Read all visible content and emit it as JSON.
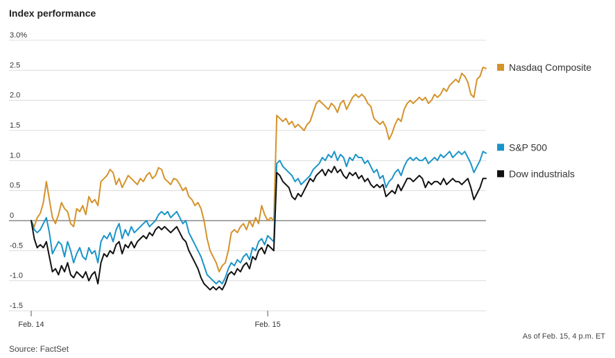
{
  "chart_data": {
    "type": "line",
    "title": "Index performance",
    "note": "As of Feb. 15, 4 p.m. ET",
    "source": "Source: FactSet",
    "ylim": [
      -1.5,
      3.0
    ],
    "y_ticks": [
      {
        "value": 3.0,
        "label": "3.0%"
      },
      {
        "value": 2.5,
        "label": "2.5"
      },
      {
        "value": 2.0,
        "label": "2.0"
      },
      {
        "value": 1.5,
        "label": "1.5"
      },
      {
        "value": 1.0,
        "label": "1.0"
      },
      {
        "value": 0.5,
        "label": "0.5"
      },
      {
        "value": 0,
        "label": "0"
      },
      {
        "value": -0.5,
        "label": "-0.5"
      },
      {
        "value": -1.0,
        "label": "-1.0"
      },
      {
        "value": -1.5,
        "label": "-1.5"
      }
    ],
    "x_ticks": [
      {
        "value": 0,
        "label": "Feb. 14"
      },
      {
        "value": 78,
        "label": "Feb. 15"
      }
    ],
    "grid": true,
    "legend_position": "right",
    "series": [
      {
        "name": "Nasdaq Composite",
        "color": "#d4922a",
        "values": [
          0,
          -0.1,
          0.05,
          0.12,
          0.3,
          0.65,
          0.35,
          0.05,
          -0.05,
          0.1,
          0.3,
          0.2,
          0.15,
          -0.05,
          -0.1,
          0.2,
          0.15,
          0.25,
          0.1,
          0.4,
          0.3,
          0.35,
          0.25,
          0.65,
          0.7,
          0.75,
          0.85,
          0.8,
          0.6,
          0.7,
          0.55,
          0.65,
          0.75,
          0.7,
          0.65,
          0.6,
          0.7,
          0.65,
          0.75,
          0.8,
          0.7,
          0.75,
          0.88,
          0.85,
          0.7,
          0.65,
          0.6,
          0.7,
          0.68,
          0.6,
          0.5,
          0.55,
          0.4,
          0.35,
          0.25,
          0.3,
          0.2,
          0.0,
          -0.3,
          -0.5,
          -0.6,
          -0.7,
          -0.85,
          -0.75,
          -0.7,
          -0.5,
          -0.2,
          -0.15,
          -0.2,
          -0.1,
          -0.05,
          -0.15,
          0.0,
          -0.1,
          0.05,
          -0.05,
          0.25,
          0.1,
          0.0,
          0.05,
          0.0,
          1.75,
          1.7,
          1.65,
          1.7,
          1.6,
          1.65,
          1.55,
          1.6,
          1.55,
          1.5,
          1.6,
          1.65,
          1.8,
          1.95,
          2.0,
          1.95,
          1.9,
          1.85,
          1.95,
          1.9,
          1.8,
          1.95,
          2.0,
          1.85,
          1.95,
          2.05,
          2.1,
          2.05,
          2.1,
          2.05,
          1.95,
          1.9,
          1.7,
          1.65,
          1.6,
          1.65,
          1.55,
          1.35,
          1.45,
          1.6,
          1.7,
          1.65,
          1.85,
          1.95,
          2.0,
          1.95,
          2.0,
          2.05,
          2.0,
          2.05,
          1.95,
          2.0,
          2.1,
          2.05,
          2.1,
          2.2,
          2.15,
          2.25,
          2.3,
          2.35,
          2.3,
          2.45,
          2.4,
          2.3,
          2.1,
          2.05,
          2.35,
          2.4,
          2.55,
          2.53
        ]
      },
      {
        "name": "S&P 500",
        "color": "#1a94c9",
        "values": [
          0,
          -0.15,
          -0.2,
          -0.15,
          -0.05,
          0.05,
          -0.2,
          -0.55,
          -0.45,
          -0.35,
          -0.4,
          -0.6,
          -0.35,
          -0.5,
          -0.7,
          -0.55,
          -0.45,
          -0.6,
          -0.65,
          -0.45,
          -0.55,
          -0.5,
          -0.7,
          -0.35,
          -0.25,
          -0.3,
          -0.2,
          -0.35,
          -0.15,
          -0.05,
          -0.3,
          -0.15,
          -0.25,
          -0.1,
          -0.2,
          -0.15,
          -0.1,
          -0.05,
          0.0,
          -0.1,
          -0.05,
          0.0,
          0.1,
          0.15,
          0.1,
          0.15,
          0.05,
          0.1,
          0.15,
          0.05,
          -0.05,
          0.0,
          -0.2,
          -0.3,
          -0.4,
          -0.5,
          -0.6,
          -0.75,
          -0.9,
          -0.95,
          -1.0,
          -1.05,
          -1.0,
          -1.05,
          -0.95,
          -0.8,
          -0.7,
          -0.75,
          -0.65,
          -0.7,
          -0.6,
          -0.55,
          -0.65,
          -0.45,
          -0.5,
          -0.35,
          -0.3,
          -0.4,
          -0.25,
          -0.3,
          -0.35,
          0.95,
          1.0,
          0.9,
          0.85,
          0.8,
          0.75,
          0.65,
          0.7,
          0.6,
          0.65,
          0.7,
          0.75,
          0.85,
          0.9,
          0.95,
          1.05,
          1.0,
          1.1,
          1.05,
          1.15,
          1.0,
          1.1,
          1.05,
          0.9,
          1.05,
          1.0,
          1.1,
          1.05,
          1.05,
          0.95,
          1.0,
          0.9,
          0.8,
          0.85,
          0.7,
          0.75,
          0.55,
          0.65,
          0.7,
          0.8,
          0.85,
          0.75,
          0.9,
          1.0,
          1.05,
          1.0,
          1.05,
          1.0,
          1.0,
          1.05,
          0.95,
          1.0,
          1.05,
          1.0,
          1.1,
          1.05,
          1.1,
          1.15,
          1.05,
          1.1,
          1.15,
          1.1,
          1.15,
          1.05,
          0.95,
          0.8,
          0.9,
          1.0,
          1.15,
          1.12
        ]
      },
      {
        "name": "Dow industrials",
        "color": "#111111",
        "values": [
          0,
          -0.3,
          -0.45,
          -0.4,
          -0.45,
          -0.35,
          -0.6,
          -0.85,
          -0.8,
          -0.9,
          -0.75,
          -0.85,
          -0.7,
          -0.9,
          -0.95,
          -0.85,
          -0.9,
          -0.95,
          -0.85,
          -1.0,
          -0.9,
          -0.85,
          -1.05,
          -0.7,
          -0.55,
          -0.6,
          -0.5,
          -0.55,
          -0.4,
          -0.35,
          -0.55,
          -0.4,
          -0.45,
          -0.35,
          -0.45,
          -0.35,
          -0.3,
          -0.25,
          -0.3,
          -0.2,
          -0.25,
          -0.15,
          -0.1,
          -0.15,
          -0.1,
          -0.15,
          -0.2,
          -0.15,
          -0.1,
          -0.2,
          -0.3,
          -0.35,
          -0.5,
          -0.6,
          -0.7,
          -0.8,
          -0.95,
          -1.05,
          -1.1,
          -1.15,
          -1.1,
          -1.15,
          -1.1,
          -1.15,
          -1.05,
          -0.9,
          -0.85,
          -0.9,
          -0.8,
          -0.85,
          -0.75,
          -0.7,
          -0.8,
          -0.6,
          -0.65,
          -0.5,
          -0.45,
          -0.55,
          -0.4,
          -0.45,
          -0.5,
          0.8,
          0.75,
          0.65,
          0.6,
          0.55,
          0.4,
          0.35,
          0.45,
          0.4,
          0.5,
          0.6,
          0.7,
          0.65,
          0.75,
          0.8,
          0.85,
          0.75,
          0.85,
          0.8,
          0.9,
          0.8,
          0.85,
          0.75,
          0.7,
          0.8,
          0.75,
          0.8,
          0.7,
          0.75,
          0.65,
          0.7,
          0.6,
          0.55,
          0.6,
          0.55,
          0.6,
          0.4,
          0.45,
          0.5,
          0.45,
          0.6,
          0.5,
          0.6,
          0.7,
          0.7,
          0.65,
          0.7,
          0.75,
          0.7,
          0.55,
          0.65,
          0.6,
          0.65,
          0.65,
          0.6,
          0.7,
          0.6,
          0.65,
          0.7,
          0.65,
          0.65,
          0.6,
          0.65,
          0.7,
          0.55,
          0.35,
          0.45,
          0.55,
          0.7,
          0.7
        ]
      }
    ]
  }
}
